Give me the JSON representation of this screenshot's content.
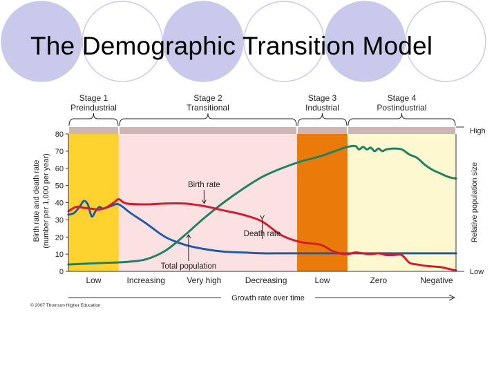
{
  "slide": {
    "title": "The Demographic Transition Model",
    "copyright": "© 2007 Thomson Higher Education"
  },
  "colors": {
    "decor_circles": "#c9c9ec",
    "stage1": "#fdd12e",
    "stage2": "#fbe1e1",
    "stage3": "#ea7b0a",
    "stage4": "#fdf8cf",
    "stage_band": "#cdb6b4",
    "birth_rate": "#d7192f",
    "death_rate": "#1f5bab",
    "total_population": "#1d8262"
  },
  "chart_data": {
    "type": "line",
    "xlabel": "Growth rate over time",
    "ylabel": "Birth rate and death rate",
    "ylabel2": "(number per 1,000 per year)",
    "y2label": "Relative population size",
    "y2_high": "High",
    "y2_low": "Low",
    "ylim": [
      0,
      80
    ],
    "yticks": [
      "0",
      "10",
      "20",
      "30",
      "40",
      "50",
      "60",
      "70",
      "80"
    ],
    "xlim": [
      0,
      100
    ],
    "growth_labels": [
      {
        "x": 6.5,
        "label": "Low"
      },
      {
        "x": 20,
        "label": "Increasing"
      },
      {
        "x": 35,
        "label": "Very high"
      },
      {
        "x": 51,
        "label": "Decreasing"
      },
      {
        "x": 65.5,
        "label": "Low"
      },
      {
        "x": 80,
        "label": "Zero"
      },
      {
        "x": 95,
        "label": "Negative"
      }
    ],
    "stages": [
      {
        "name": "Stage 1",
        "label": "Preindustrial",
        "x0": 0,
        "x1": 13,
        "color": "#fdd12e"
      },
      {
        "name": "Stage 2",
        "label": "Transitional",
        "x0": 13,
        "x1": 59,
        "color": "#fbe1e1"
      },
      {
        "name": "Stage 3",
        "label": "Industrial",
        "x0": 59,
        "x1": 72,
        "color": "#ea7b0a"
      },
      {
        "name": "Stage 4",
        "label": "Postindustrial",
        "x0": 72,
        "x1": 100,
        "color": "#fdf8cf"
      }
    ],
    "series": [
      {
        "name": "Birth rate",
        "color": "#d7192f",
        "x": [
          0,
          2,
          4,
          6,
          8,
          10,
          12,
          13,
          15,
          20,
          25,
          30,
          35,
          40,
          45,
          50,
          55,
          60,
          65,
          68,
          70,
          72,
          74,
          76,
          78,
          80,
          82,
          84,
          86,
          88,
          90,
          93,
          96,
          98,
          100
        ],
        "y": [
          35,
          37.5,
          37,
          36.5,
          36,
          37.5,
          40.5,
          42,
          39.5,
          39,
          39.5,
          39.5,
          38,
          35.5,
          33,
          29,
          21,
          17,
          15.5,
          12,
          10.5,
          10,
          11,
          10.5,
          10,
          10.5,
          9.5,
          9.5,
          9.5,
          5,
          4,
          3,
          2.5,
          1.5,
          0.5
        ]
      },
      {
        "name": "Death rate",
        "color": "#1f5bab",
        "x": [
          0,
          1.5,
          3,
          4,
          5,
          6,
          7,
          8,
          9,
          11,
          13,
          16,
          20,
          25,
          30,
          35,
          40,
          45,
          50,
          55,
          60,
          70,
          80,
          90,
          100
        ],
        "y": [
          33,
          34,
          38,
          41,
          39,
          32,
          35,
          37.5,
          36.5,
          38,
          39,
          34,
          28,
          20,
          15.5,
          13,
          11.5,
          11,
          10.5,
          10.5,
          10.5,
          10.5,
          10.5,
          10.5,
          10.5
        ]
      },
      {
        "name": "Total population",
        "color": "#1d8262",
        "x": [
          0,
          5,
          10,
          15,
          20,
          25,
          30,
          35,
          40,
          45,
          50,
          55,
          60,
          65,
          70,
          72,
          74,
          75,
          76,
          77,
          78,
          79,
          80,
          81,
          82,
          84,
          86,
          88,
          90,
          92,
          94,
          96,
          98,
          100
        ],
        "y": [
          4,
          4.5,
          5,
          5.5,
          7,
          12,
          21,
          31,
          40,
          48,
          55,
          60,
          64,
          67,
          71,
          72.5,
          73,
          71,
          72.5,
          71,
          72,
          70,
          71.5,
          70,
          71,
          71.5,
          71,
          68,
          66,
          62,
          59,
          57,
          55,
          54
        ]
      }
    ],
    "annotations": [
      {
        "text": "Birth rate",
        "series": "Birth rate",
        "arrow_x": 35
      },
      {
        "text": "Death rate",
        "series": "Birth rate",
        "arrow_x": 50
      },
      {
        "text": "Total population",
        "series": "Total population",
        "arrow_x": 31
      }
    ]
  }
}
